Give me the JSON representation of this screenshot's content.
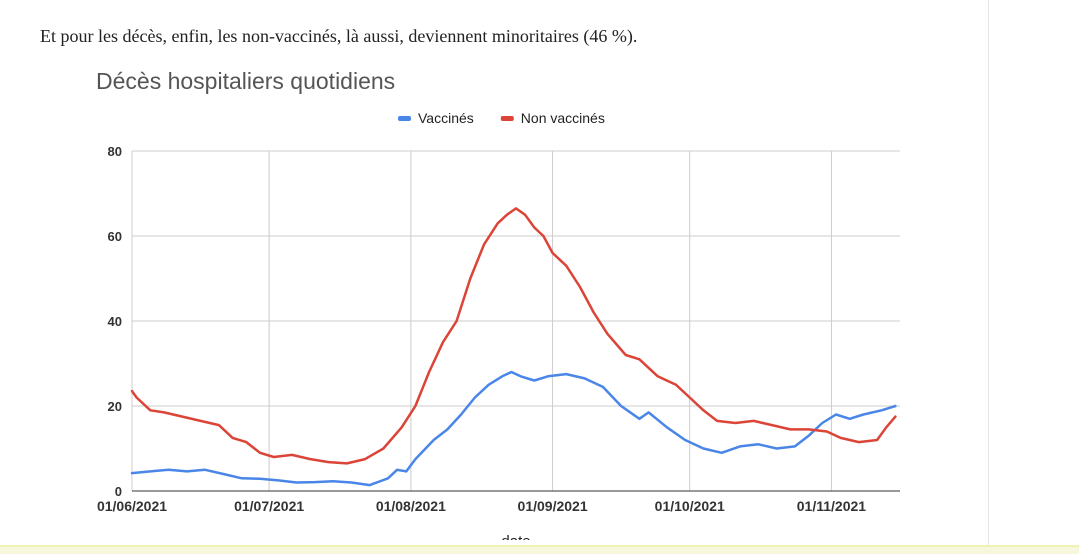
{
  "article": {
    "intro_text": "Et pour les décès, enfin, les non-vaccinés, là aussi, deviennent minoritaires (46 %)."
  },
  "chart_data": {
    "type": "line",
    "title": "Décès hospitaliers quotidiens",
    "xlabel": "date",
    "ylabel": "",
    "ylim": [
      0,
      80
    ],
    "yticks": [
      0,
      20,
      40,
      60,
      80
    ],
    "xticks": [
      "01/06/2021",
      "01/07/2021",
      "01/08/2021",
      "01/09/2021",
      "01/10/2021",
      "01/11/2021"
    ],
    "xlim": [
      "01/06/2021",
      "16/11/2021"
    ],
    "legend_position": "top",
    "grid": true,
    "series": [
      {
        "name": "Vaccinés",
        "color": "#4a86e8",
        "points": [
          [
            "01/06/2021",
            4.2
          ],
          [
            "05/06/2021",
            4.6
          ],
          [
            "09/06/2021",
            5.0
          ],
          [
            "13/06/2021",
            4.6
          ],
          [
            "17/06/2021",
            5.0
          ],
          [
            "21/06/2021",
            4.0
          ],
          [
            "25/06/2021",
            3.0
          ],
          [
            "29/06/2021",
            2.9
          ],
          [
            "03/07/2021",
            2.5
          ],
          [
            "07/07/2021",
            2.0
          ],
          [
            "11/07/2021",
            2.1
          ],
          [
            "15/07/2021",
            2.3
          ],
          [
            "19/07/2021",
            2.0
          ],
          [
            "23/07/2021",
            1.4
          ],
          [
            "27/07/2021",
            3.0
          ],
          [
            "29/07/2021",
            5.0
          ],
          [
            "31/07/2021",
            4.6
          ],
          [
            "02/08/2021",
            7.5
          ],
          [
            "06/08/2021",
            12.0
          ],
          [
            "09/08/2021",
            14.5
          ],
          [
            "12/08/2021",
            18.0
          ],
          [
            "15/08/2021",
            22.0
          ],
          [
            "18/08/2021",
            25.0
          ],
          [
            "21/08/2021",
            27.0
          ],
          [
            "23/08/2021",
            28.0
          ],
          [
            "25/08/2021",
            27.0
          ],
          [
            "28/08/2021",
            26.0
          ],
          [
            "31/08/2021",
            27.0
          ],
          [
            "04/09/2021",
            27.5
          ],
          [
            "08/09/2021",
            26.5
          ],
          [
            "12/09/2021",
            24.5
          ],
          [
            "16/09/2021",
            20.0
          ],
          [
            "20/09/2021",
            17.0
          ],
          [
            "22/09/2021",
            18.5
          ],
          [
            "26/09/2021",
            15.0
          ],
          [
            "30/09/2021",
            12.0
          ],
          [
            "04/10/2021",
            10.0
          ],
          [
            "08/10/2021",
            9.0
          ],
          [
            "12/10/2021",
            10.5
          ],
          [
            "16/10/2021",
            11.0
          ],
          [
            "20/10/2021",
            10.0
          ],
          [
            "24/10/2021",
            10.5
          ],
          [
            "27/10/2021",
            13.0
          ],
          [
            "30/10/2021",
            16.0
          ],
          [
            "02/11/2021",
            18.0
          ],
          [
            "05/11/2021",
            17.0
          ],
          [
            "08/11/2021",
            18.0
          ],
          [
            "12/11/2021",
            19.0
          ],
          [
            "15/11/2021",
            20.0
          ]
        ]
      },
      {
        "name": "Non vaccinés",
        "color": "#db4437",
        "points": [
          [
            "01/06/2021",
            23.5
          ],
          [
            "02/06/2021",
            22.0
          ],
          [
            "05/06/2021",
            19.0
          ],
          [
            "08/06/2021",
            18.5
          ],
          [
            "12/06/2021",
            17.5
          ],
          [
            "16/06/2021",
            16.5
          ],
          [
            "20/06/2021",
            15.5
          ],
          [
            "23/06/2021",
            12.5
          ],
          [
            "26/06/2021",
            11.5
          ],
          [
            "29/06/2021",
            9.0
          ],
          [
            "02/07/2021",
            8.0
          ],
          [
            "06/07/2021",
            8.5
          ],
          [
            "10/07/2021",
            7.5
          ],
          [
            "14/07/2021",
            6.8
          ],
          [
            "18/07/2021",
            6.5
          ],
          [
            "22/07/2021",
            7.5
          ],
          [
            "26/07/2021",
            10.0
          ],
          [
            "30/07/2021",
            15.0
          ],
          [
            "02/08/2021",
            20.0
          ],
          [
            "05/08/2021",
            28.0
          ],
          [
            "08/08/2021",
            35.0
          ],
          [
            "11/08/2021",
            40.0
          ],
          [
            "14/08/2021",
            50.0
          ],
          [
            "17/08/2021",
            58.0
          ],
          [
            "20/08/2021",
            63.0
          ],
          [
            "22/08/2021",
            65.0
          ],
          [
            "24/08/2021",
            66.5
          ],
          [
            "26/08/2021",
            65.0
          ],
          [
            "28/08/2021",
            62.0
          ],
          [
            "30/08/2021",
            60.0
          ],
          [
            "01/09/2021",
            56.0
          ],
          [
            "04/09/2021",
            53.0
          ],
          [
            "07/09/2021",
            48.0
          ],
          [
            "10/09/2021",
            42.0
          ],
          [
            "13/09/2021",
            37.0
          ],
          [
            "17/09/2021",
            32.0
          ],
          [
            "20/09/2021",
            31.0
          ],
          [
            "24/09/2021",
            27.0
          ],
          [
            "28/09/2021",
            25.0
          ],
          [
            "01/10/2021",
            22.0
          ],
          [
            "04/10/2021",
            19.0
          ],
          [
            "07/10/2021",
            16.5
          ],
          [
            "11/10/2021",
            16.0
          ],
          [
            "15/10/2021",
            16.5
          ],
          [
            "19/10/2021",
            15.5
          ],
          [
            "23/10/2021",
            14.5
          ],
          [
            "27/10/2021",
            14.5
          ],
          [
            "31/10/2021",
            14.0
          ],
          [
            "03/11/2021",
            12.5
          ],
          [
            "07/11/2021",
            11.5
          ],
          [
            "11/11/2021",
            12.0
          ],
          [
            "13/11/2021",
            15.0
          ],
          [
            "15/11/2021",
            17.5
          ]
        ]
      }
    ]
  }
}
